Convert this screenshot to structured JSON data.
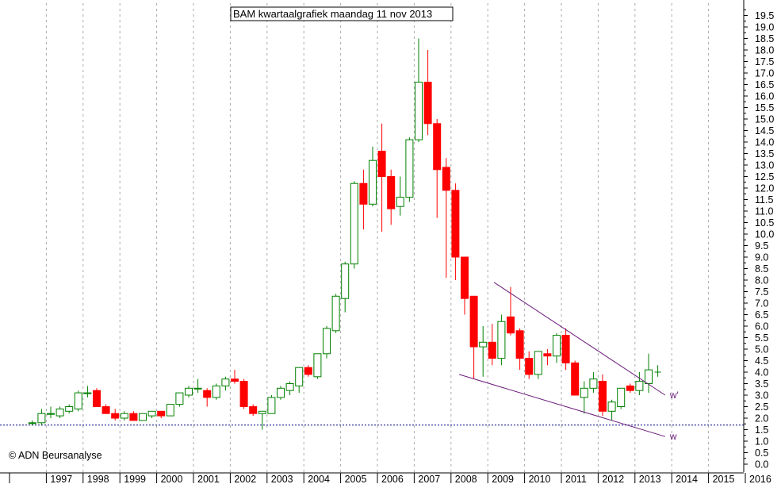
{
  "chart_data": {
    "type": "candlestick",
    "title": "BAM kwartaalgrafiek maandag 11 nov 2013",
    "credit": "© ADN Beursanalyse",
    "ylim": [
      0,
      20
    ],
    "y_ticks": [
      "0.0",
      "0.5",
      "1.0",
      "1.5",
      "2.0",
      "2.5",
      "3.0",
      "3.5",
      "4.0",
      "4.5",
      "5.0",
      "5.5",
      "6.0",
      "6.5",
      "7.0",
      "7.5",
      "8.0",
      "8.5",
      "9.0",
      "9.5",
      "10.0",
      "10.5",
      "11.0",
      "11.5",
      "12.0",
      "12.5",
      "13.0",
      "13.5",
      "14.0",
      "14.5",
      "15.0",
      "15.5",
      "16.0",
      "16.5",
      "17.0",
      "17.5",
      "18.0",
      "18.5",
      "19.0",
      "19.5"
    ],
    "x_ticks": [
      "1997",
      "1998",
      "1999",
      "2000",
      "2001",
      "2002",
      "2003",
      "2004",
      "2005",
      "2006",
      "2007",
      "2008",
      "2009",
      "2010",
      "2011",
      "2012",
      "2013",
      "2014",
      "2015",
      "2016"
    ],
    "x_start_year": 1996,
    "x_end_year": 2016.2,
    "grid": true,
    "up_color": "#008000",
    "down_color": "#ff0000",
    "support_level": 1.7,
    "candles": [
      {
        "q": "1996 Q4",
        "o": 1.8,
        "h": 1.9,
        "l": 1.7,
        "c": 1.8
      },
      {
        "q": "1997 Q1",
        "o": 1.8,
        "h": 2.4,
        "l": 1.7,
        "c": 2.2
      },
      {
        "q": "1997 Q2",
        "o": 2.2,
        "h": 2.5,
        "l": 2.0,
        "c": 2.2
      },
      {
        "q": "1997 Q3",
        "o": 2.1,
        "h": 2.5,
        "l": 2.0,
        "c": 2.4
      },
      {
        "q": "1997 Q4",
        "o": 2.3,
        "h": 2.6,
        "l": 2.2,
        "c": 2.5
      },
      {
        "q": "1998 Q1",
        "o": 2.4,
        "h": 3.2,
        "l": 2.3,
        "c": 3.1
      },
      {
        "q": "1998 Q2",
        "o": 3.1,
        "h": 3.4,
        "l": 2.9,
        "c": 3.1
      },
      {
        "q": "1998 Q3",
        "o": 3.2,
        "h": 3.3,
        "l": 2.5,
        "c": 2.5
      },
      {
        "q": "1998 Q4",
        "o": 2.5,
        "h": 2.6,
        "l": 2.2,
        "c": 2.2
      },
      {
        "q": "1999 Q1",
        "o": 2.2,
        "h": 2.4,
        "l": 1.9,
        "c": 2.0
      },
      {
        "q": "1999 Q2",
        "o": 2.0,
        "h": 2.3,
        "l": 1.9,
        "c": 2.2
      },
      {
        "q": "1999 Q3",
        "o": 2.2,
        "h": 2.3,
        "l": 1.9,
        "c": 1.9
      },
      {
        "q": "1999 Q4",
        "o": 1.9,
        "h": 2.2,
        "l": 1.9,
        "c": 2.2
      },
      {
        "q": "2000 Q1",
        "o": 2.1,
        "h": 2.3,
        "l": 2.0,
        "c": 2.3
      },
      {
        "q": "2000 Q2",
        "o": 2.3,
        "h": 2.3,
        "l": 2.0,
        "c": 2.1
      },
      {
        "q": "2000 Q3",
        "o": 2.1,
        "h": 2.6,
        "l": 2.1,
        "c": 2.6
      },
      {
        "q": "2000 Q4",
        "o": 2.6,
        "h": 3.1,
        "l": 2.5,
        "c": 3.1
      },
      {
        "q": "2001 Q1",
        "o": 3.0,
        "h": 3.4,
        "l": 2.9,
        "c": 3.3
      },
      {
        "q": "2001 Q2",
        "o": 3.3,
        "h": 3.7,
        "l": 3.1,
        "c": 3.3
      },
      {
        "q": "2001 Q3",
        "o": 3.2,
        "h": 3.3,
        "l": 2.5,
        "c": 2.9
      },
      {
        "q": "2001 Q4",
        "o": 2.9,
        "h": 3.5,
        "l": 2.8,
        "c": 3.4
      },
      {
        "q": "2002 Q1",
        "o": 3.4,
        "h": 3.8,
        "l": 3.2,
        "c": 3.7
      },
      {
        "q": "2002 Q2",
        "o": 3.7,
        "h": 4.1,
        "l": 3.5,
        "c": 3.6
      },
      {
        "q": "2002 Q3",
        "o": 3.6,
        "h": 3.7,
        "l": 2.4,
        "c": 2.5
      },
      {
        "q": "2002 Q4",
        "o": 2.5,
        "h": 2.6,
        "l": 2.1,
        "c": 2.2
      },
      {
        "q": "2003 Q1",
        "o": 2.2,
        "h": 2.3,
        "l": 1.5,
        "c": 2.3
      },
      {
        "q": "2003 Q2",
        "o": 2.2,
        "h": 3.0,
        "l": 2.2,
        "c": 2.9
      },
      {
        "q": "2003 Q3",
        "o": 2.9,
        "h": 3.4,
        "l": 2.8,
        "c": 3.3
      },
      {
        "q": "2003 Q4",
        "o": 3.2,
        "h": 3.6,
        "l": 3.0,
        "c": 3.5
      },
      {
        "q": "2004 Q1",
        "o": 3.4,
        "h": 4.2,
        "l": 3.1,
        "c": 4.2
      },
      {
        "q": "2004 Q2",
        "o": 4.2,
        "h": 4.3,
        "l": 3.8,
        "c": 3.9
      },
      {
        "q": "2004 Q3",
        "o": 3.8,
        "h": 4.8,
        "l": 3.7,
        "c": 4.8
      },
      {
        "q": "2004 Q4",
        "o": 4.8,
        "h": 6.0,
        "l": 4.6,
        "c": 5.9
      },
      {
        "q": "2005 Q1",
        "o": 5.8,
        "h": 7.4,
        "l": 5.7,
        "c": 7.3
      },
      {
        "q": "2005 Q2",
        "o": 7.2,
        "h": 8.8,
        "l": 6.6,
        "c": 8.7
      },
      {
        "q": "2005 Q3",
        "o": 8.7,
        "h": 12.3,
        "l": 8.5,
        "c": 12.2
      },
      {
        "q": "2005 Q4",
        "o": 12.2,
        "h": 12.8,
        "l": 10.2,
        "c": 11.3
      },
      {
        "q": "2006 Q1",
        "o": 11.3,
        "h": 13.8,
        "l": 11.2,
        "c": 13.2
      },
      {
        "q": "2006 Q2",
        "o": 13.6,
        "h": 14.8,
        "l": 10.1,
        "c": 12.5
      },
      {
        "q": "2006 Q3",
        "o": 12.5,
        "h": 12.8,
        "l": 10.4,
        "c": 11.1
      },
      {
        "q": "2006 Q4",
        "o": 11.2,
        "h": 12.5,
        "l": 10.8,
        "c": 11.6
      },
      {
        "q": "2007 Q1",
        "o": 11.6,
        "h": 14.2,
        "l": 11.4,
        "c": 14.1
      },
      {
        "q": "2007 Q2",
        "o": 14.1,
        "h": 18.5,
        "l": 14.0,
        "c": 16.6
      },
      {
        "q": "2007 Q3",
        "o": 16.6,
        "h": 18.0,
        "l": 14.3,
        "c": 14.8
      },
      {
        "q": "2007 Q4",
        "o": 14.8,
        "h": 15.0,
        "l": 10.7,
        "c": 12.8
      },
      {
        "q": "2008 Q1",
        "o": 12.9,
        "h": 13.3,
        "l": 8.1,
        "c": 11.9
      },
      {
        "q": "2008 Q2",
        "o": 11.9,
        "h": 12.2,
        "l": 8.0,
        "c": 9.0
      },
      {
        "q": "2008 Q3",
        "o": 9.0,
        "h": 9.0,
        "l": 6.5,
        "c": 7.2
      },
      {
        "q": "2008 Q4",
        "o": 7.3,
        "h": 7.3,
        "l": 3.7,
        "c": 5.1
      },
      {
        "q": "2009 Q1",
        "o": 5.1,
        "h": 6.0,
        "l": 3.8,
        "c": 5.3
      },
      {
        "q": "2009 Q2",
        "o": 5.3,
        "h": 6.1,
        "l": 4.3,
        "c": 4.6
      },
      {
        "q": "2009 Q3",
        "o": 4.6,
        "h": 6.5,
        "l": 4.3,
        "c": 6.2
      },
      {
        "q": "2009 Q4",
        "o": 6.4,
        "h": 7.7,
        "l": 5.6,
        "c": 5.7
      },
      {
        "q": "2010 Q1",
        "o": 5.8,
        "h": 5.9,
        "l": 4.1,
        "c": 4.6
      },
      {
        "q": "2010 Q2",
        "o": 4.6,
        "h": 4.9,
        "l": 3.7,
        "c": 3.9
      },
      {
        "q": "2010 Q3",
        "o": 3.9,
        "h": 4.9,
        "l": 3.7,
        "c": 4.9
      },
      {
        "q": "2010 Q4",
        "o": 4.8,
        "h": 5.0,
        "l": 4.3,
        "c": 4.7
      },
      {
        "q": "2011 Q1",
        "o": 4.7,
        "h": 5.7,
        "l": 4.4,
        "c": 5.6
      },
      {
        "q": "2011 Q2",
        "o": 5.6,
        "h": 5.9,
        "l": 4.1,
        "c": 4.4
      },
      {
        "q": "2011 Q3",
        "o": 4.4,
        "h": 4.5,
        "l": 3.0,
        "c": 3.0
      },
      {
        "q": "2011 Q4",
        "o": 2.9,
        "h": 3.6,
        "l": 2.2,
        "c": 3.3
      },
      {
        "q": "2012 Q1",
        "o": 3.3,
        "h": 4.0,
        "l": 3.1,
        "c": 3.7
      },
      {
        "q": "2012 Q2",
        "o": 3.6,
        "h": 3.9,
        "l": 2.1,
        "c": 2.3
      },
      {
        "q": "2012 Q3",
        "o": 2.3,
        "h": 2.8,
        "l": 1.9,
        "c": 2.7
      },
      {
        "q": "2012 Q4",
        "o": 2.5,
        "h": 3.3,
        "l": 2.4,
        "c": 3.3
      },
      {
        "q": "2013 Q1",
        "o": 3.4,
        "h": 3.5,
        "l": 3.1,
        "c": 3.2
      },
      {
        "q": "2013 Q2",
        "o": 3.2,
        "h": 4.0,
        "l": 3.0,
        "c": 3.6
      },
      {
        "q": "2013 Q3",
        "o": 3.5,
        "h": 4.8,
        "l": 3.1,
        "c": 4.1
      },
      {
        "q": "2013 Q4",
        "o": 4.0,
        "h": 4.3,
        "l": 3.8,
        "c": 4.0
      }
    ],
    "trendlines": [
      {
        "label": "w'",
        "color": "#6a1b7a",
        "x1": 2009.3,
        "y1": 7.9,
        "x2": 2013.95,
        "y2": 3.0
      },
      {
        "label": "w",
        "color": "#6a1b7a",
        "x1": 2008.35,
        "y1": 3.9,
        "x2": 2013.95,
        "y2": 1.2
      }
    ]
  }
}
